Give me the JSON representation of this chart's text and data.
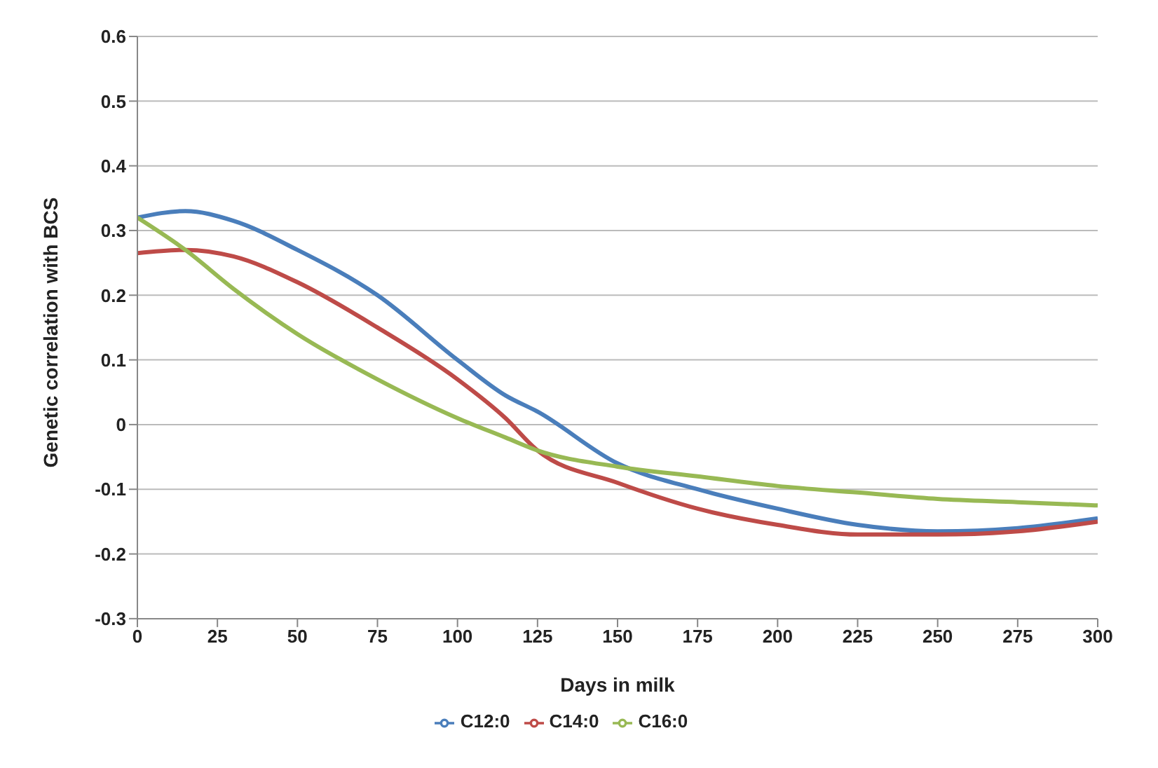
{
  "chart_data": {
    "type": "line",
    "xlabel": "Days in milk",
    "ylabel": "Genetic correlation with BCS",
    "x": [
      0,
      15,
      30,
      50,
      75,
      100,
      115,
      125,
      150,
      175,
      200,
      225,
      250,
      275,
      300
    ],
    "series": [
      {
        "name": "C12:0",
        "color": "#4a7ebb",
        "values": [
          0.32,
          0.33,
          0.315,
          0.27,
          0.2,
          0.1,
          0.045,
          0.02,
          -0.06,
          -0.1,
          -0.13,
          -0.155,
          -0.165,
          -0.16,
          -0.145
        ]
      },
      {
        "name": "C14:0",
        "color": "#be4b48",
        "values": [
          0.265,
          0.27,
          0.26,
          0.22,
          0.15,
          0.07,
          0.01,
          -0.04,
          -0.09,
          -0.13,
          -0.155,
          -0.17,
          -0.17,
          -0.165,
          -0.15
        ]
      },
      {
        "name": "C16:0",
        "color": "#98b954",
        "values": [
          0.32,
          0.27,
          0.21,
          0.14,
          0.07,
          0.01,
          -0.02,
          -0.04,
          -0.065,
          -0.08,
          -0.095,
          -0.105,
          -0.115,
          -0.12,
          -0.125
        ]
      }
    ],
    "xlim": [
      0,
      300
    ],
    "xticks": [
      0,
      25,
      50,
      75,
      100,
      125,
      150,
      175,
      200,
      225,
      250,
      275,
      300
    ],
    "ylim": [
      -0.3,
      0.6
    ],
    "yticks": [
      -0.3,
      -0.2,
      -0.1,
      0,
      0.1,
      0.2,
      0.3,
      0.4,
      0.5,
      0.6
    ],
    "grid": "y",
    "legend": "bottom",
    "marker": "none",
    "line_style": "solid"
  }
}
